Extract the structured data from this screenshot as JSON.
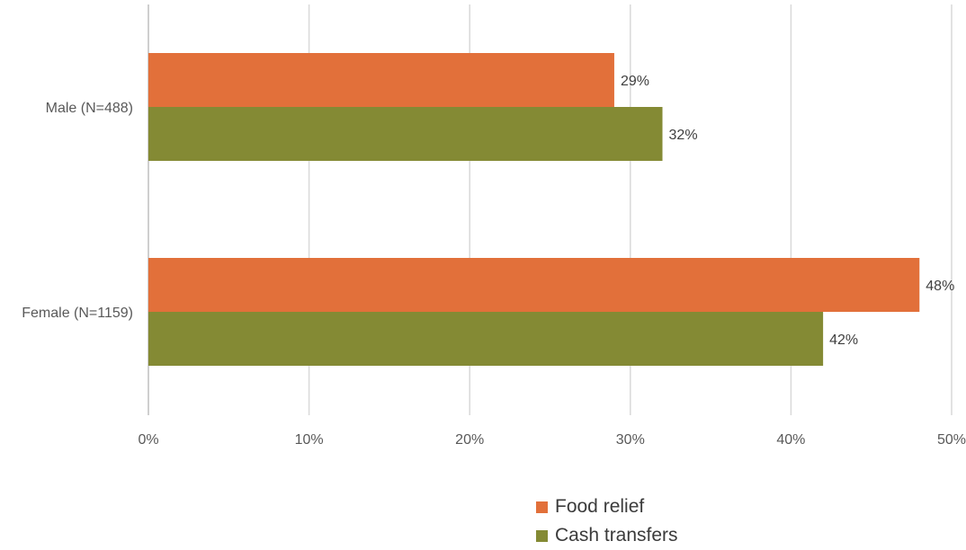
{
  "chart_data": {
    "type": "bar",
    "orientation": "horizontal",
    "categories": [
      "Male (N=488)",
      "Female (N=1159)"
    ],
    "series": [
      {
        "name": "Food relief",
        "color": "#E2703A",
        "values": [
          29,
          48
        ],
        "labels": [
          "29%",
          "48%"
        ]
      },
      {
        "name": "Cash transfers",
        "color": "#848A34",
        "values": [
          32,
          42
        ],
        "labels": [
          "32%",
          "42%"
        ]
      }
    ],
    "xlim": [
      0,
      50
    ],
    "x_ticks": [
      0,
      10,
      20,
      30,
      40,
      50
    ],
    "x_tick_labels": [
      "0%",
      "10%",
      "20%",
      "30%",
      "40%",
      "50%"
    ],
    "grid": true,
    "legend_position": "bottom"
  }
}
